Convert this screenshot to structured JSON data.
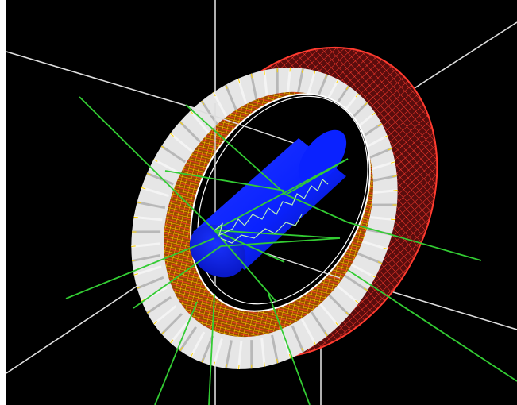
{
  "viewer": {
    "background": "#000000",
    "frame_color": "#ffffff"
  },
  "scene": {
    "objects": [
      {
        "name": "ring-detector",
        "type": "torus",
        "color": "#e6e6e6"
      },
      {
        "name": "ring-inner-wire-mesh",
        "type": "wireframe",
        "colors": [
          "#ff3b2f",
          "#ffd400"
        ]
      },
      {
        "name": "central-cylinder",
        "type": "cylinder",
        "color": "#0a22ff"
      },
      {
        "name": "particle-tracks",
        "type": "lines",
        "color": "#33cc33"
      },
      {
        "name": "coordinate-axes",
        "type": "lines",
        "color": "#ffffff"
      }
    ],
    "colors": {
      "ring_face": "#e6e6e6",
      "ring_shadow": "#b8b8b8",
      "wire_red": "#ff3b2f",
      "wire_yellow": "#ffd400",
      "cylinder": "#0a22ff",
      "cylinder_dark": "#06118f",
      "track": "#33cc33",
      "track_light": "#b8f0b8",
      "axis": "#dddddd"
    }
  }
}
